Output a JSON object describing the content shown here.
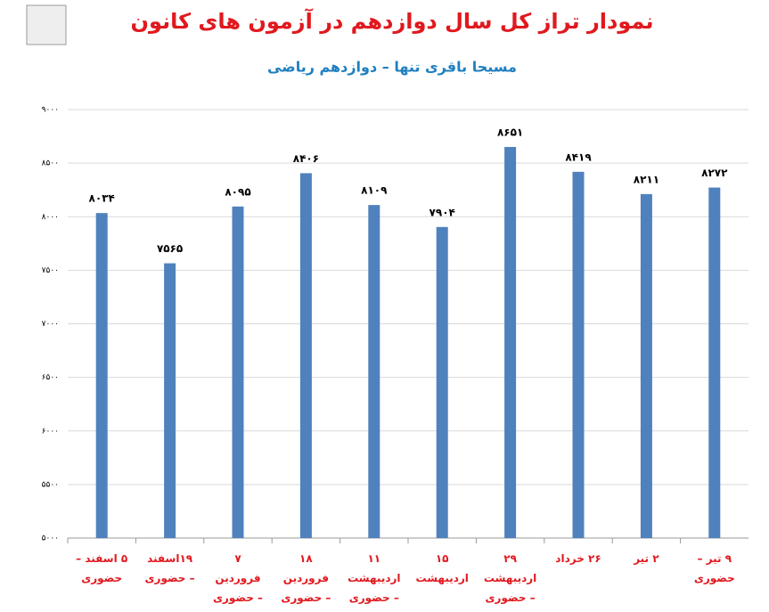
{
  "chart_data": {
    "type": "bar",
    "title": "نمودار تراز کل سال دوازدهم در آزمون های کانون",
    "subtitle": "مسیحا باقری تنها – دوازدهم ریاضی",
    "categories": [
      "۵ اسفند – حضوری",
      "۱۹اسفند – حضوری",
      "۷ فروردین – حضوری",
      "۱۸ فروردین – حضوری",
      "۱۱ اردیبهشت – حضوری",
      "۱۵ اردیبهشت",
      "۲۹ اردیبهشت – حضوری",
      "۲۶ خرداد",
      "۲ تیر",
      "۹ تیر – حضوری"
    ],
    "values": [
      8034,
      7565,
      8095,
      8406,
      8109,
      7904,
      8651,
      8419,
      8211,
      8272
    ],
    "value_labels": [
      "۸۰۳۴",
      "۷۵۶۵",
      "۸۰۹۵",
      "۸۴۰۶",
      "۸۱۰۹",
      "۷۹۰۴",
      "۸۶۵۱",
      "۸۴۱۹",
      "۸۲۱۱",
      "۸۲۷۲"
    ],
    "color": "#4f81bd",
    "ylim": [
      5000,
      9000
    ],
    "yticks": [
      {
        "value": 5000,
        "label": "۵۰۰۰"
      },
      {
        "value": 5500,
        "label": "۵۵۰۰"
      },
      {
        "value": 6000,
        "label": "۶۰۰۰"
      },
      {
        "value": 6500,
        "label": "۶۵۰۰"
      },
      {
        "value": 7000,
        "label": "۷۰۰۰"
      },
      {
        "value": 7500,
        "label": "۷۵۰۰"
      },
      {
        "value": 8000,
        "label": "۸۰۰۰"
      },
      {
        "value": 8500,
        "label": "۸۵۰۰"
      },
      {
        "value": 9000,
        "label": "۹۰۰۰"
      }
    ],
    "grid": true
  }
}
